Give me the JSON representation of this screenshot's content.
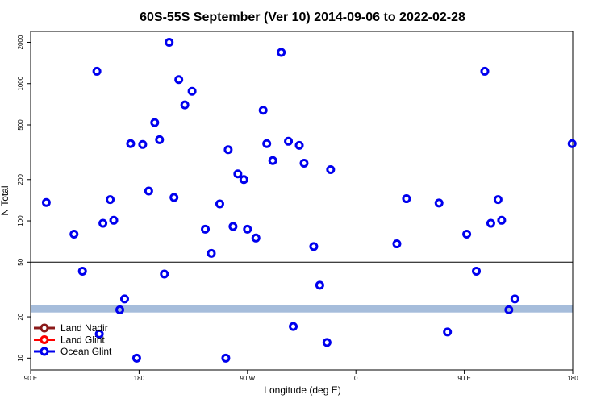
{
  "chart_data": {
    "type": "scatter",
    "title": "60S-55S September (Ver 10)   2014-09-06 to 2022-02-28",
    "xlabel": "Longitude (deg E)",
    "ylabel": "N Total",
    "y_scale": "log",
    "xlim": [
      90,
      540
    ],
    "ylim": [
      8.2,
      2400
    ],
    "x_ticks": [
      {
        "value": 90,
        "label": "90 E"
      },
      {
        "value": 180,
        "label": "180"
      },
      {
        "value": 270,
        "label": "90 W"
      },
      {
        "value": 360,
        "label": "0"
      },
      {
        "value": 450,
        "label": "90 E"
      },
      {
        "value": 540,
        "label": "180"
      }
    ],
    "y_ticks": [
      {
        "value": 10,
        "label": "10"
      },
      {
        "value": 20,
        "label": "20"
      },
      {
        "value": 50,
        "label": "50"
      },
      {
        "value": 100,
        "label": "100"
      },
      {
        "value": 200,
        "label": "200"
      },
      {
        "value": 500,
        "label": "500"
      },
      {
        "value": 1000,
        "label": "1000"
      },
      {
        "value": 2000,
        "label": "2000"
      }
    ],
    "reference_line": {
      "y": 50,
      "color": "#000000"
    },
    "band": {
      "y_low": 21.5,
      "y_high": 24.5,
      "color": "#a6bddb"
    },
    "legend": {
      "position": "bottom-left",
      "entries": [
        {
          "label": "Land Nadir",
          "color": "#8b1a1a"
        },
        {
          "label": "Land Glint",
          "color": "#ff0000"
        },
        {
          "label": "Ocean Glint",
          "color": "#0000ee"
        }
      ]
    },
    "series": [
      {
        "name": "Ocean Glint",
        "color": "#0000ee",
        "points": [
          [
            103,
            136
          ],
          [
            126,
            80
          ],
          [
            133,
            43
          ],
          [
            145,
            1230
          ],
          [
            147,
            15
          ],
          [
            150,
            96
          ],
          [
            156,
            143
          ],
          [
            159,
            101
          ],
          [
            164,
            22.5
          ],
          [
            168,
            27
          ],
          [
            173,
            365
          ],
          [
            178,
            10
          ],
          [
            183,
            360
          ],
          [
            188,
            165
          ],
          [
            193,
            520
          ],
          [
            197,
            390
          ],
          [
            201,
            41
          ],
          [
            205,
            2000
          ],
          [
            209,
            148
          ],
          [
            213,
            1070
          ],
          [
            218,
            700
          ],
          [
            224,
            880
          ],
          [
            235,
            87
          ],
          [
            240,
            58
          ],
          [
            247,
            133
          ],
          [
            252,
            10
          ],
          [
            254,
            330
          ],
          [
            258,
            91
          ],
          [
            262,
            220
          ],
          [
            267,
            200
          ],
          [
            270,
            87
          ],
          [
            277,
            75
          ],
          [
            283,
            640
          ],
          [
            286,
            365
          ],
          [
            291,
            275
          ],
          [
            298,
            1690
          ],
          [
            304,
            380
          ],
          [
            308,
            17
          ],
          [
            313,
            355
          ],
          [
            317,
            263
          ],
          [
            325,
            65
          ],
          [
            330,
            34
          ],
          [
            336,
            13
          ],
          [
            339,
            236
          ],
          [
            394,
            68
          ],
          [
            402,
            145
          ],
          [
            429,
            135
          ],
          [
            436,
            15.5
          ],
          [
            452,
            80
          ],
          [
            460,
            43
          ],
          [
            467,
            1230
          ],
          [
            472,
            96
          ],
          [
            478,
            143
          ],
          [
            481,
            101
          ],
          [
            487,
            22.5
          ],
          [
            492,
            27
          ],
          [
            554,
            365
          ]
        ]
      }
    ]
  }
}
